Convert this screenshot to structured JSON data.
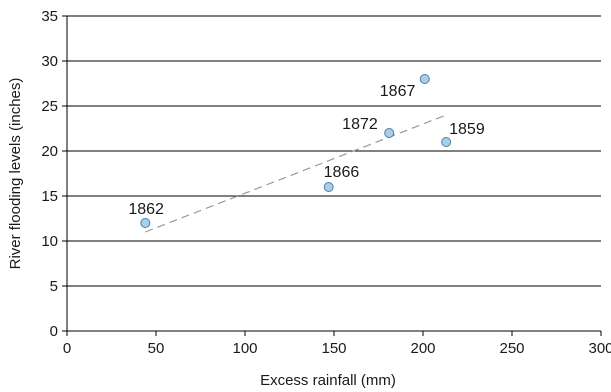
{
  "chart_data": {
    "type": "scatter",
    "xlabel": "Excess rainfall (mm)",
    "ylabel": "River flooding levels (inches)",
    "xlim": [
      0,
      300
    ],
    "ylim": [
      0,
      35
    ],
    "x_ticks": [
      "0",
      "50",
      "100",
      "150",
      "200",
      "250",
      "300"
    ],
    "y_ticks": [
      "0",
      "5",
      "10",
      "15",
      "20",
      "25",
      "30",
      "35"
    ],
    "grid": "horizontal",
    "points": [
      {
        "label": "1862",
        "x": 44,
        "y": 12
      },
      {
        "label": "1866",
        "x": 147,
        "y": 16
      },
      {
        "label": "1872",
        "x": 181,
        "y": 22
      },
      {
        "label": "1867",
        "x": 201,
        "y": 28
      },
      {
        "label": "1859",
        "x": 213,
        "y": 21
      }
    ],
    "trendline": {
      "style": "dashed",
      "from": [
        44,
        11
      ],
      "to": [
        213,
        24
      ]
    },
    "colors": {
      "point_fill": "#a8cfe6",
      "point_stroke": "#4a7fa8",
      "trendline": "#8a9db0",
      "grid": "#000000"
    }
  }
}
